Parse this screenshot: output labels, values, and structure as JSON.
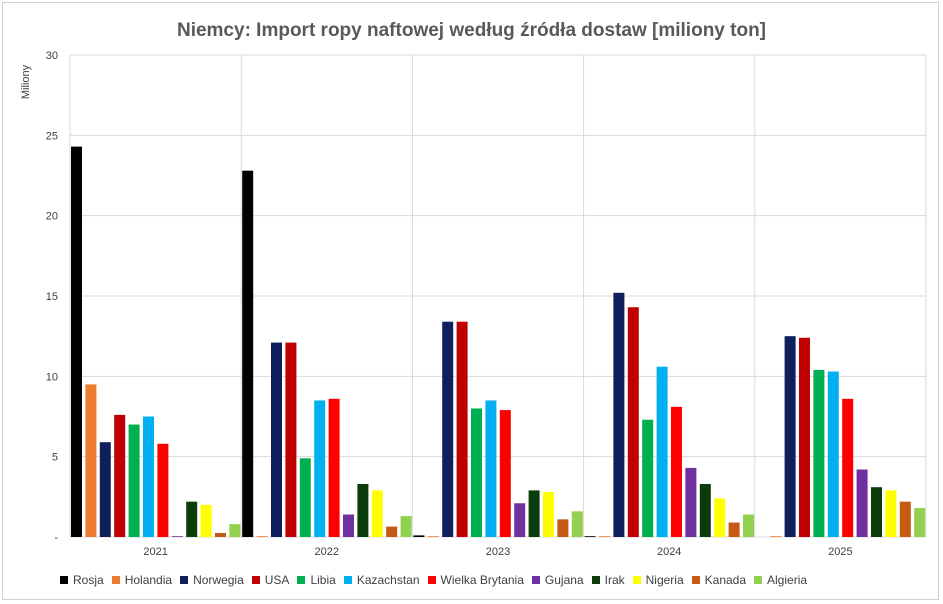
{
  "chart_data": {
    "type": "bar",
    "title": "Niemcy: Import ropy naftowej według źródła dostaw [miliony ton]",
    "ylabel": "Miliony",
    "xlabel": "",
    "ylim": [
      0,
      30
    ],
    "yticks": [
      0,
      5,
      10,
      15,
      20,
      25,
      30
    ],
    "ytick_labels": [
      "-",
      "5",
      "10",
      "15",
      "20",
      "25",
      "30"
    ],
    "grid": true,
    "legend_position": "bottom",
    "categories": [
      "2021",
      "2022",
      "2023",
      "2024",
      "2025"
    ],
    "series": [
      {
        "name": "Rosja",
        "color": "#000000",
        "values": [
          24.3,
          22.8,
          0.1,
          0.05,
          0
        ]
      },
      {
        "name": "Holandia",
        "color": "#ED7D31",
        "values": [
          9.5,
          0.05,
          0.05,
          0.05,
          0.05
        ]
      },
      {
        "name": "Norwegia",
        "color": "#0E1F5B",
        "values": [
          5.9,
          12.1,
          13.4,
          15.2,
          12.5
        ]
      },
      {
        "name": "USA",
        "color": "#C00000",
        "values": [
          7.6,
          12.1,
          13.4,
          14.3,
          12.4
        ]
      },
      {
        "name": "Libia",
        "color": "#00B050",
        "values": [
          7.0,
          4.9,
          8.0,
          7.3,
          10.4
        ]
      },
      {
        "name": "Kazachstan",
        "color": "#00B0F0",
        "values": [
          7.5,
          8.5,
          8.5,
          10.6,
          10.3
        ]
      },
      {
        "name": "Wielka Brytania",
        "color": "#FF0000",
        "values": [
          5.8,
          8.6,
          7.9,
          8.1,
          8.6
        ]
      },
      {
        "name": "Gujana",
        "color": "#7030A0",
        "values": [
          0.05,
          1.4,
          2.1,
          4.3,
          4.2
        ]
      },
      {
        "name": "Irak",
        "color": "#0B3D0B",
        "values": [
          2.2,
          3.3,
          2.9,
          3.3,
          3.1
        ]
      },
      {
        "name": "Nigeria",
        "color": "#FFFF00",
        "values": [
          2.0,
          2.9,
          2.8,
          2.4,
          2.9
        ]
      },
      {
        "name": "Kanada",
        "color": "#C55A11",
        "values": [
          0.25,
          0.65,
          1.1,
          0.9,
          2.2
        ]
      },
      {
        "name": "Algieria",
        "color": "#92D050",
        "values": [
          0.8,
          1.3,
          1.6,
          1.4,
          1.8
        ]
      }
    ]
  }
}
